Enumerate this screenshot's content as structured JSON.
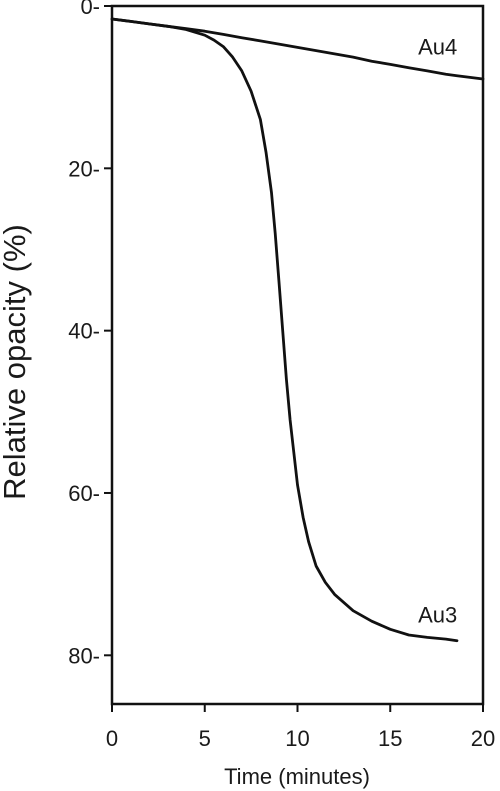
{
  "chart_data": {
    "type": "line",
    "title": "",
    "xlabel": "Time (minutes)",
    "ylabel": "Relative opacity (%)",
    "xlim": [
      0,
      20
    ],
    "ylim": [
      0,
      86
    ],
    "y_inverted": true,
    "grid": false,
    "x_ticks": [
      0,
      5,
      10,
      15,
      20
    ],
    "y_ticks": [
      0,
      20,
      40,
      60,
      80
    ],
    "series": [
      {
        "name": "Au4",
        "color": "#111111",
        "label_at": [
          16.5,
          5
        ],
        "x": [
          0,
          1,
          2,
          3,
          4,
          5,
          6,
          7,
          8,
          9,
          10,
          11,
          12,
          13,
          14,
          15,
          16,
          17,
          18,
          18.6,
          20
        ],
        "y": [
          1.6,
          1.9,
          2.2,
          2.5,
          2.8,
          3.1,
          3.5,
          3.9,
          4.3,
          4.7,
          5.1,
          5.5,
          5.9,
          6.3,
          6.8,
          7.2,
          7.6,
          8.0,
          8.4,
          8.6,
          9.0
        ]
      },
      {
        "name": "Au3",
        "color": "#111111",
        "label_at": [
          16.5,
          75
        ],
        "x": [
          0,
          1,
          2,
          3,
          4,
          5,
          5.5,
          6,
          6.5,
          7,
          7.5,
          8,
          8.3,
          8.6,
          8.8,
          9.0,
          9.2,
          9.4,
          9.6,
          9.8,
          10.0,
          10.3,
          10.6,
          11.0,
          11.5,
          12,
          13,
          14,
          15,
          16,
          17,
          18,
          18.6
        ],
        "y": [
          1.6,
          1.9,
          2.2,
          2.5,
          2.9,
          3.6,
          4.2,
          5.0,
          6.3,
          8.0,
          10.5,
          14.0,
          18.0,
          23.0,
          28.0,
          34.0,
          40.0,
          46.0,
          51.0,
          55.0,
          59.0,
          63.0,
          66.0,
          69.0,
          71.0,
          72.5,
          74.5,
          75.8,
          76.8,
          77.5,
          77.8,
          78.0,
          78.2
        ]
      }
    ]
  }
}
